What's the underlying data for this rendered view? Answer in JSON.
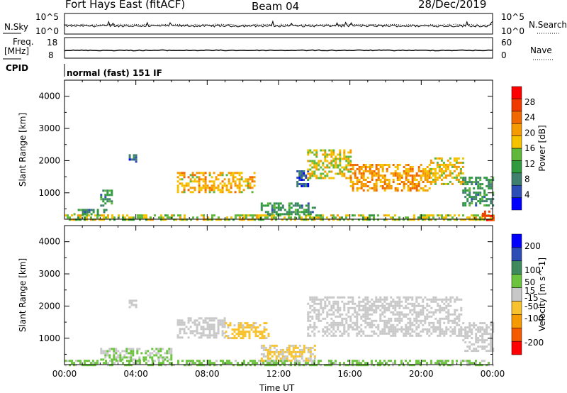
{
  "header": {
    "station": "Fort Hays East (fitACF)",
    "beam": "Beam 04",
    "date": "28/Dec/2019"
  },
  "noise_panel": {
    "left_label": "N.Sky",
    "left_ticks": [
      "10^5",
      "10^0"
    ],
    "right_label": "N.Search",
    "right_ticks": [
      "10^5",
      "10^0"
    ]
  },
  "freq_panel": {
    "left_label_top": "Freq.",
    "left_label_bottom": "[MHz]",
    "left_ticks": [
      "18",
      "8"
    ],
    "right_label": "Nave",
    "right_ticks": [
      "60",
      "0"
    ]
  },
  "cpid": {
    "label": "CPID",
    "value": "normal (fast) 151 IF"
  },
  "time_axis": {
    "label": "Time UT",
    "ticks": [
      "00:00",
      "04:00",
      "08:00",
      "12:00",
      "16:00",
      "20:00",
      "00:00"
    ]
  },
  "colors": {
    "power_scale": [
      "#0000ff",
      "#2d4db6",
      "#3f7f6e",
      "#2f9b3e",
      "#5fb83a",
      "#f6c200",
      "#f59a00",
      "#f06800",
      "#f03a00",
      "#ff0000"
    ],
    "velocity_scale": [
      "#ff0000",
      "#f45a00",
      "#f59a00",
      "#f8c22e",
      "#c8c8c8",
      "#6cc43e",
      "#3f8a5a",
      "#2d4db6",
      "#0000ff"
    ]
  },
  "chart_data": [
    {
      "type": "heatmap",
      "title": "",
      "xlabel": "",
      "ylabel": "Slant Range [km]",
      "xlim": [
        0,
        24
      ],
      "ylim": [
        180,
        4500
      ],
      "yticks": [
        1000,
        2000,
        3000,
        4000
      ],
      "colorbar": {
        "label": "Power [dB]",
        "ticks": [
          4,
          8,
          12,
          16,
          20,
          24,
          28
        ],
        "range": [
          0,
          32
        ]
      },
      "regions": [
        {
          "t0": 0.0,
          "t1": 24.0,
          "r0": 180,
          "r1": 330,
          "power": 16
        },
        {
          "t0": 0.5,
          "t1": 2.5,
          "r0": 330,
          "r1": 500,
          "power": 9
        },
        {
          "t0": 2.0,
          "t1": 2.6,
          "r0": 600,
          "r1": 1100,
          "power": 10
        },
        {
          "t0": 3.6,
          "t1": 4.0,
          "r0": 1950,
          "r1": 2200,
          "power": 6
        },
        {
          "t0": 6.3,
          "t1": 10.6,
          "r0": 1050,
          "r1": 1650,
          "power": 19
        },
        {
          "t0": 11.0,
          "t1": 14.0,
          "r0": 330,
          "r1": 700,
          "power": 10
        },
        {
          "t0": 13.0,
          "t1": 13.6,
          "r0": 1200,
          "r1": 1700,
          "power": 6
        },
        {
          "t0": 13.6,
          "t1": 16.0,
          "r0": 1450,
          "r1": 2350,
          "power": 17
        },
        {
          "t0": 16.0,
          "t1": 20.5,
          "r0": 1100,
          "r1": 1900,
          "power": 21
        },
        {
          "t0": 20.5,
          "t1": 22.3,
          "r0": 1250,
          "r1": 2100,
          "power": 18
        },
        {
          "t0": 22.3,
          "t1": 24.0,
          "r0": 600,
          "r1": 1500,
          "power": 10
        },
        {
          "t0": 23.4,
          "t1": 24.0,
          "r0": 180,
          "r1": 450,
          "power": 27
        }
      ]
    },
    {
      "type": "heatmap",
      "title": "",
      "xlabel": "Time UT",
      "ylabel": "Slant Range [km]",
      "xlim": [
        0,
        24
      ],
      "ylim": [
        180,
        4500
      ],
      "yticks": [
        1000,
        2000,
        3000,
        4000
      ],
      "colorbar": {
        "label": "Velocity [m s^-1]",
        "ticks": [
          -200,
          -100,
          -50,
          -15,
          15,
          50,
          100,
          200
        ],
        "range": [
          -250,
          250
        ]
      },
      "regions": [
        {
          "t0": 0.0,
          "t1": 24.0,
          "r0": 180,
          "r1": 330,
          "velocity": 40
        },
        {
          "t0": 2.0,
          "t1": 6.0,
          "r0": 330,
          "r1": 700,
          "velocity": 30
        },
        {
          "t0": 3.6,
          "t1": 4.0,
          "r0": 1950,
          "r1": 2200,
          "velocity": 0
        },
        {
          "t0": 6.3,
          "t1": 9.0,
          "r0": 1050,
          "r1": 1650,
          "velocity": 0
        },
        {
          "t0": 9.0,
          "t1": 11.5,
          "r0": 1000,
          "r1": 1500,
          "velocity": -40
        },
        {
          "t0": 11.0,
          "t1": 14.0,
          "r0": 330,
          "r1": 800,
          "velocity": -30
        },
        {
          "t0": 13.6,
          "t1": 22.3,
          "r0": 1100,
          "r1": 2300,
          "velocity": 0
        },
        {
          "t0": 22.3,
          "t1": 24.0,
          "r0": 600,
          "r1": 1500,
          "velocity": 0
        }
      ]
    }
  ]
}
